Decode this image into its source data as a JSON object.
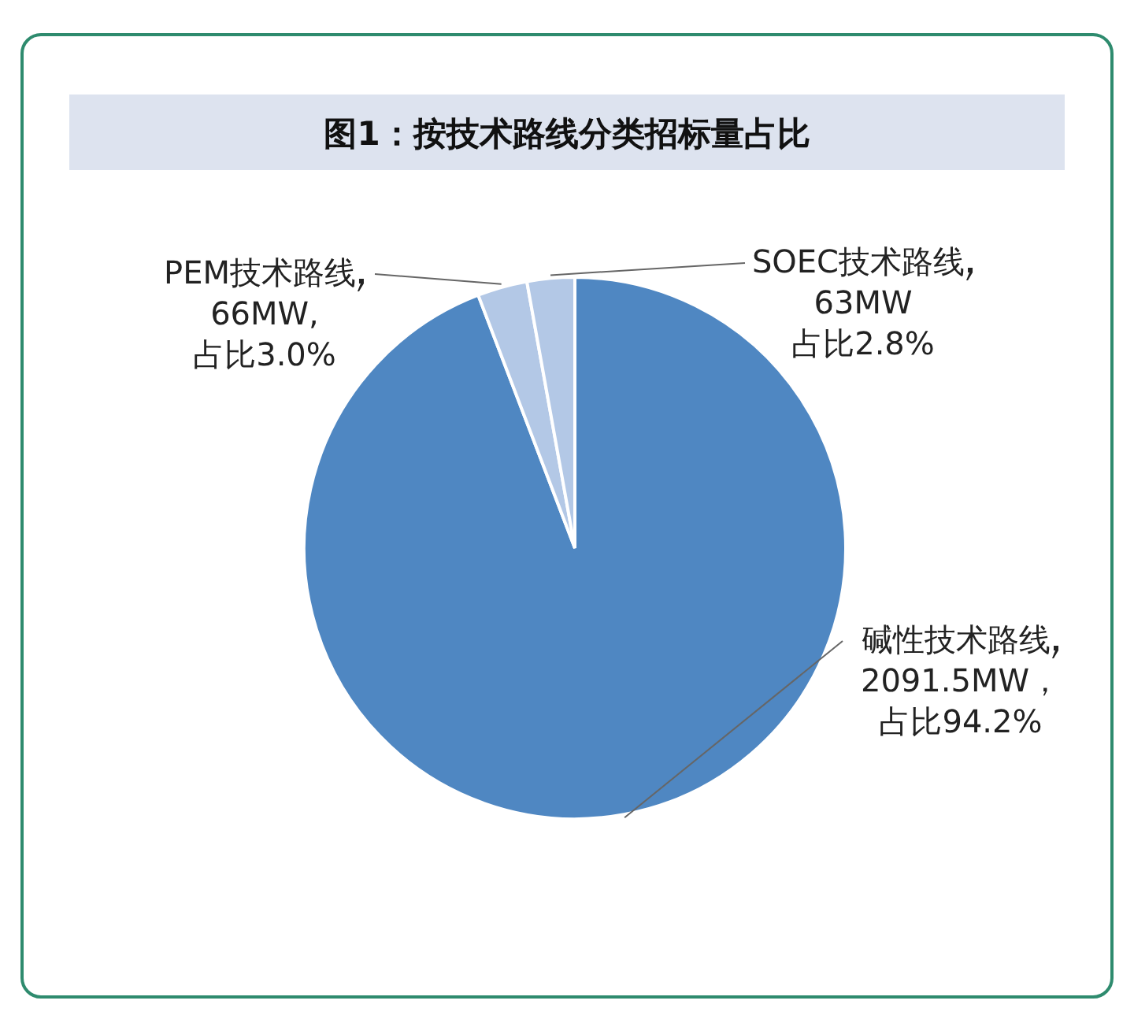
{
  "chart_data": {
    "type": "pie",
    "title": "图1：按技术路线分类招标量占比",
    "categories": [
      "碱性技术路线",
      "PEM技术路线",
      "SOEC技术路线"
    ],
    "legend": false,
    "values": [
      2091.5,
      66,
      63
    ],
    "value_labels": [
      "2091.5MW，占比94.2%",
      "66MW,占比3.0%",
      "63MW占比2.8%"
    ],
    "colors": [
      "#4f87c2",
      "#b3c8e6",
      "#b3c8e6"
    ]
  }
}
